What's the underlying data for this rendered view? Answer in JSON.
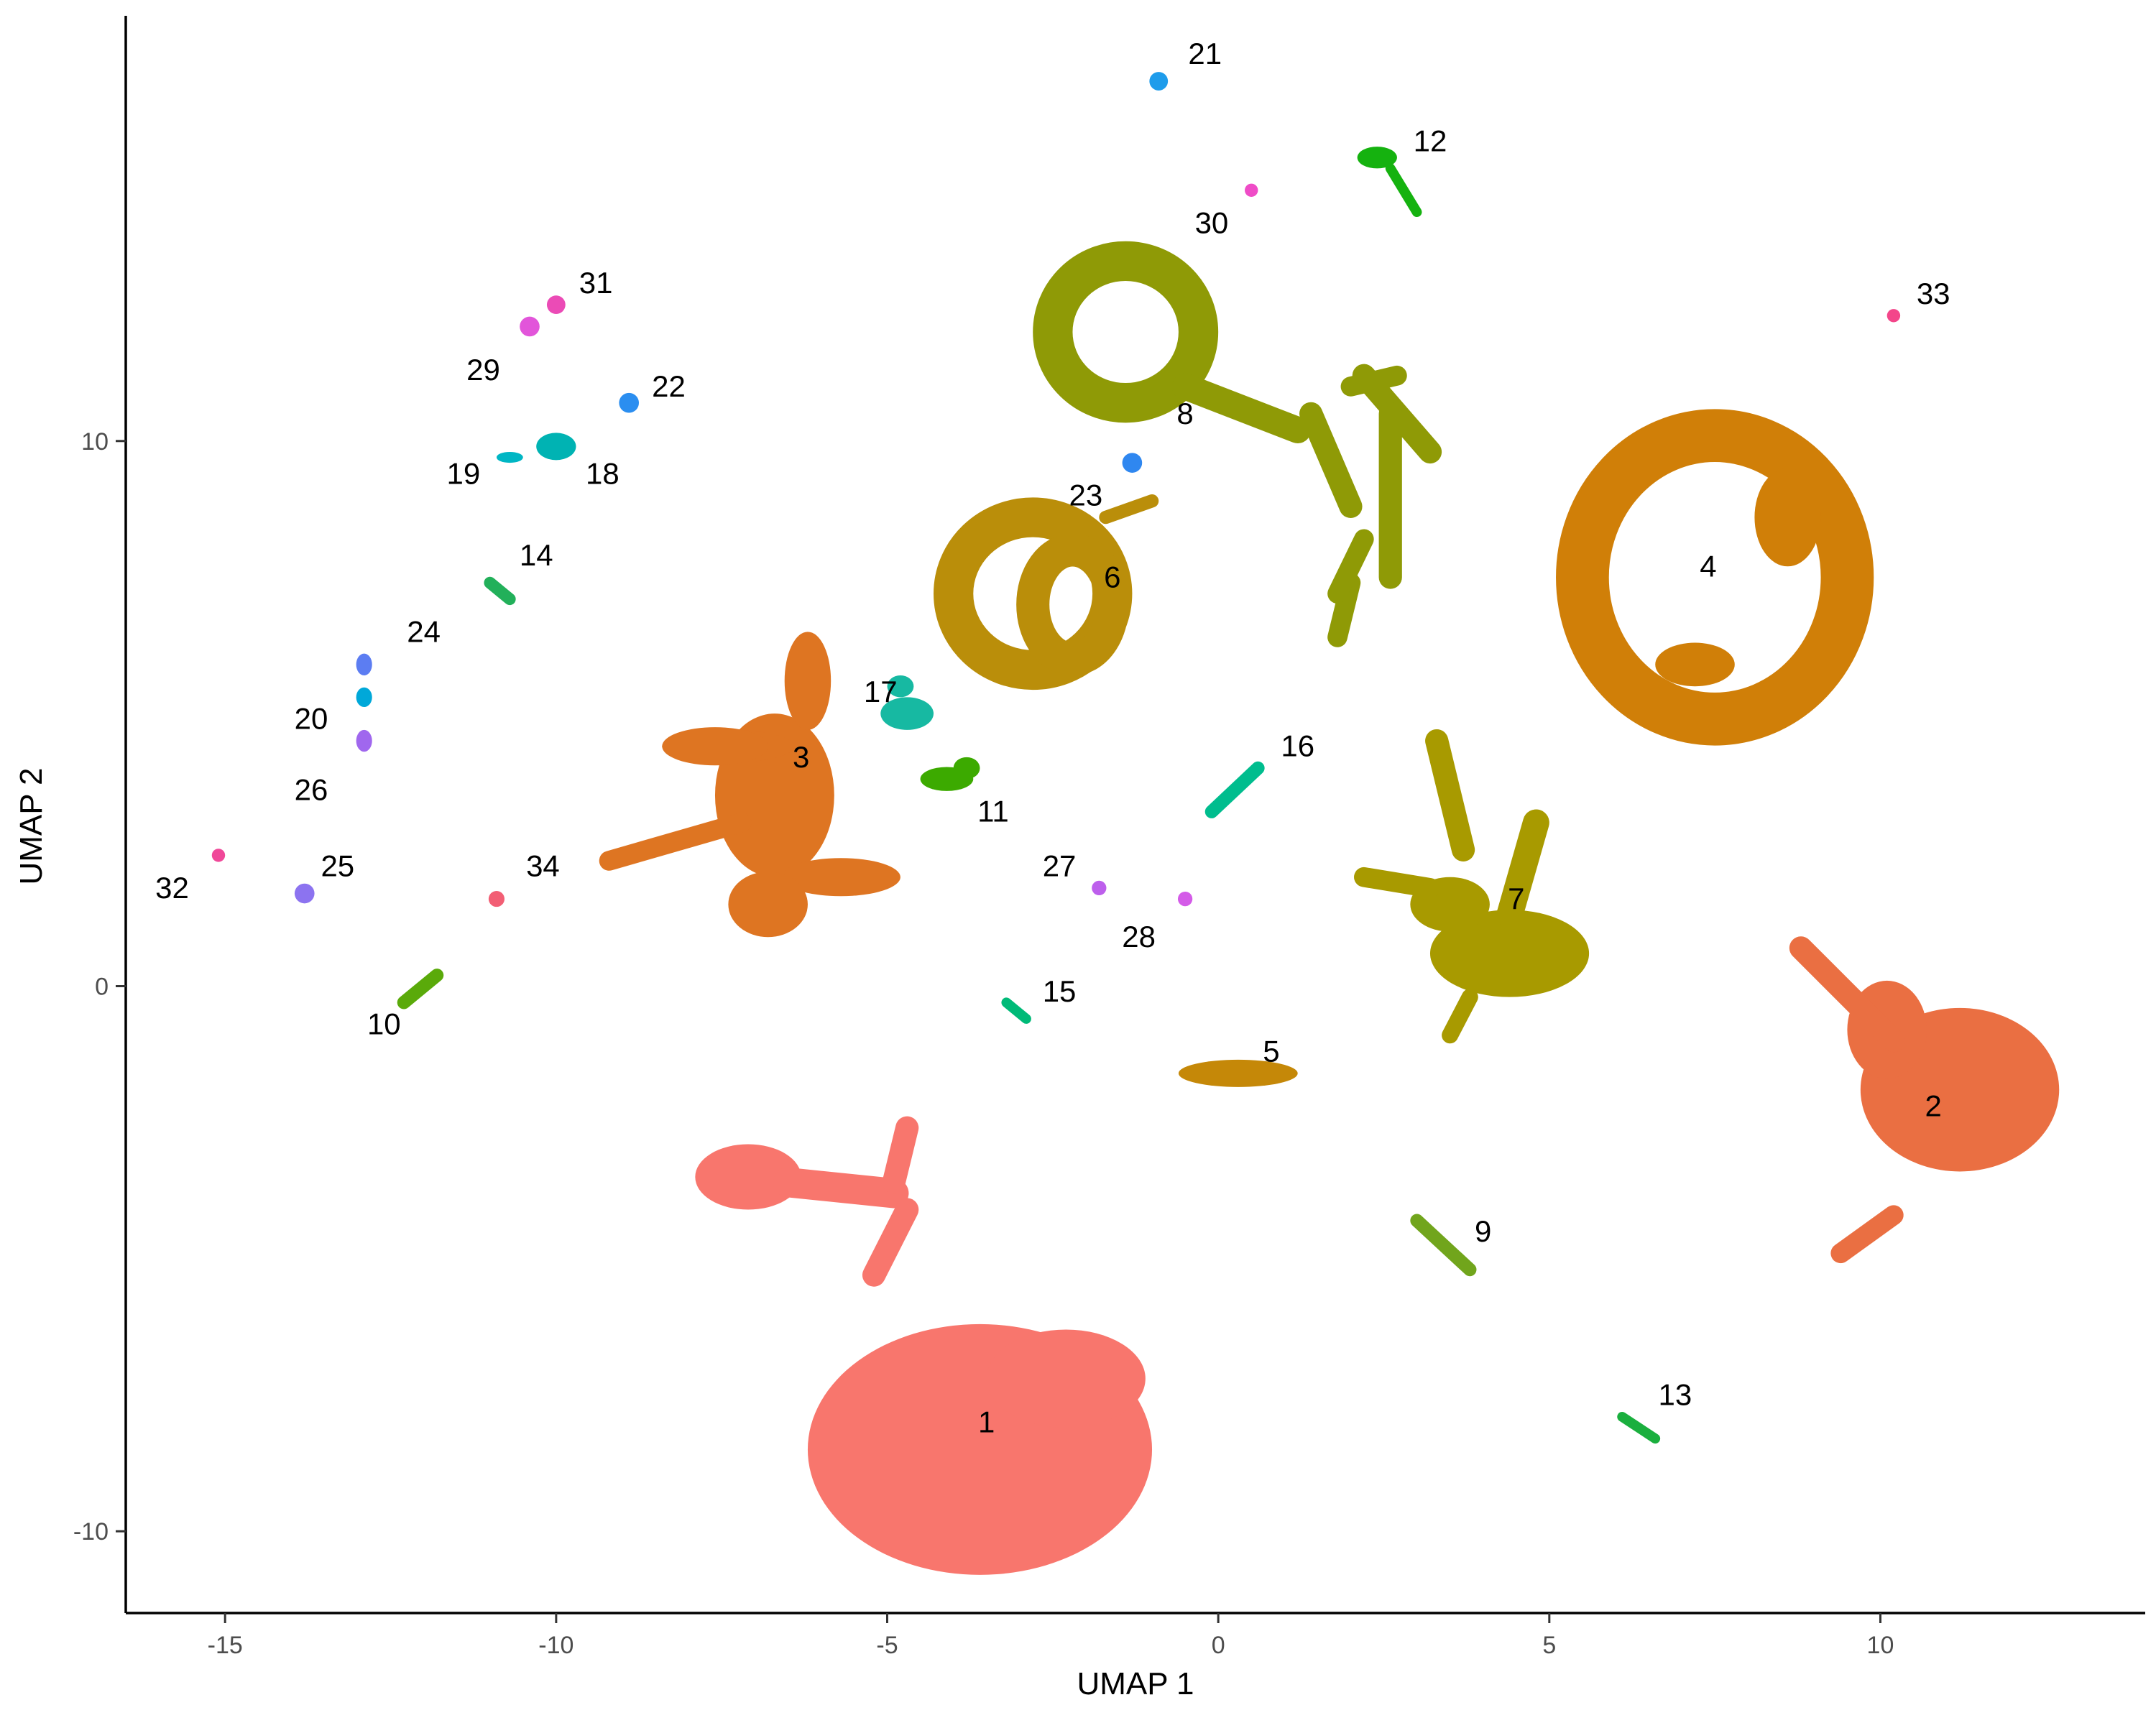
{
  "chart_data": {
    "type": "scatter",
    "title": "",
    "xlabel": "UMAP 1",
    "ylabel": "UMAP 2",
    "xlim": [
      -16.5,
      14
    ],
    "ylim": [
      -11.5,
      17.8
    ],
    "xticks": [
      -15,
      -10,
      -5,
      0,
      5,
      10
    ],
    "xtick_labels": [
      "-15",
      "-10",
      "-5",
      "0",
      "5",
      "10"
    ],
    "yticks": [
      -10,
      0,
      10
    ],
    "ytick_labels": [
      "-10",
      "0",
      "10"
    ],
    "grid": false,
    "legend": "none",
    "clusters": [
      {
        "id": "1",
        "color": "#F8766D",
        "center": [
          -3.6,
          -8.5
        ],
        "label_pos": [
          -3.5,
          -8.0
        ]
      },
      {
        "id": "2",
        "color": "#EA6F42",
        "center": [
          11.2,
          -2.0
        ],
        "label_pos": [
          10.8,
          -2.2
        ]
      },
      {
        "id": "3",
        "color": "#DE7522",
        "center": [
          -6.5,
          3.8
        ],
        "label_pos": [
          -6.3,
          4.2
        ]
      },
      {
        "id": "4",
        "color": "#D07F08",
        "center": [
          7.5,
          7.5
        ],
        "label_pos": [
          7.4,
          7.7
        ]
      },
      {
        "id": "5",
        "color": "#C58808",
        "center": [
          0.3,
          -1.6
        ],
        "label_pos": [
          0.8,
          -1.2
        ]
      },
      {
        "id": "6",
        "color": "#BA8E0A",
        "center": [
          -2.6,
          7.2
        ],
        "label_pos": [
          -1.6,
          7.5
        ]
      },
      {
        "id": "7",
        "color": "#A89A00",
        "center": [
          4.3,
          1.5
        ],
        "label_pos": [
          4.5,
          1.6
        ]
      },
      {
        "id": "8",
        "color": "#8F9A06",
        "center": [
          1.8,
          10.6
        ],
        "label_pos": [
          -0.5,
          10.5
        ]
      },
      {
        "id": "9",
        "color": "#71A51C",
        "center": [
          3.4,
          -4.6
        ],
        "label_pos": [
          4.0,
          -4.5
        ]
      },
      {
        "id": "10",
        "color": "#5AAA0A",
        "center": [
          -12.0,
          -0.1
        ],
        "label_pos": [
          -12.6,
          -0.7
        ]
      },
      {
        "id": "11",
        "color": "#3CAA00",
        "center": [
          -4.1,
          3.8
        ],
        "label_pos": [
          -3.4,
          3.2
        ]
      },
      {
        "id": "12",
        "color": "#15B20F",
        "center": [
          2.6,
          15.0
        ],
        "label_pos": [
          3.2,
          15.5
        ]
      },
      {
        "id": "13",
        "color": "#1AAF3E",
        "center": [
          6.4,
          -8.2
        ],
        "label_pos": [
          6.9,
          -7.5
        ]
      },
      {
        "id": "14",
        "color": "#22B05A",
        "center": [
          -10.9,
          7.4
        ],
        "label_pos": [
          -10.3,
          7.9
        ]
      },
      {
        "id": "15",
        "color": "#00BA78",
        "center": [
          -3.1,
          -0.5
        ],
        "label_pos": [
          -2.4,
          -0.1
        ]
      },
      {
        "id": "16",
        "color": "#00BD8E",
        "center": [
          0.3,
          3.7
        ],
        "label_pos": [
          1.2,
          4.4
        ]
      },
      {
        "id": "17",
        "color": "#17B9A2",
        "center": [
          -4.7,
          5.1
        ],
        "label_pos": [
          -5.1,
          5.4
        ]
      },
      {
        "id": "18",
        "color": "#00B3B3",
        "center": [
          -10.0,
          9.9
        ],
        "label_pos": [
          -9.3,
          9.4
        ]
      },
      {
        "id": "19",
        "color": "#00B6C4",
        "center": [
          -10.7,
          9.8
        ],
        "label_pos": [
          -11.4,
          9.4
        ]
      },
      {
        "id": "20",
        "color": "#00A8D9",
        "center": [
          -12.9,
          5.2
        ],
        "label_pos": [
          -13.7,
          4.9
        ]
      },
      {
        "id": "21",
        "color": "#1E9CEB",
        "center": [
          -0.9,
          16.7
        ],
        "label_pos": [
          -0.2,
          17.1
        ]
      },
      {
        "id": "22",
        "color": "#2B8EF0",
        "center": [
          -8.9,
          10.7
        ],
        "label_pos": [
          -8.3,
          11.0
        ]
      },
      {
        "id": "23",
        "color": "#2F87F0",
        "center": [
          -1.3,
          9.6
        ],
        "label_pos": [
          -2.0,
          9.0
        ]
      },
      {
        "id": "24",
        "color": "#5C7DF2",
        "center": [
          -12.9,
          5.9
        ],
        "label_pos": [
          -12.0,
          6.5
        ]
      },
      {
        "id": "25",
        "color": "#8C73F0",
        "center": [
          -13.8,
          1.7
        ],
        "label_pos": [
          -13.3,
          2.2
        ]
      },
      {
        "id": "26",
        "color": "#A067EE",
        "center": [
          -12.9,
          4.4
        ],
        "label_pos": [
          -13.7,
          3.6
        ]
      },
      {
        "id": "27",
        "color": "#BD5FEC",
        "center": [
          -1.8,
          1.8
        ],
        "label_pos": [
          -2.4,
          2.2
        ]
      },
      {
        "id": "28",
        "color": "#D45BE8",
        "center": [
          -0.5,
          1.6
        ],
        "label_pos": [
          -1.2,
          0.9
        ]
      },
      {
        "id": "29",
        "color": "#E255DA",
        "center": [
          -10.4,
          12.1
        ],
        "label_pos": [
          -11.1,
          11.3
        ]
      },
      {
        "id": "30",
        "color": "#EF4CC7",
        "center": [
          0.5,
          14.6
        ],
        "label_pos": [
          -0.1,
          14.0
        ]
      },
      {
        "id": "31",
        "color": "#EB4BB6",
        "center": [
          -10.0,
          12.5
        ],
        "label_pos": [
          -9.4,
          12.9
        ]
      },
      {
        "id": "32",
        "color": "#F04899",
        "center": [
          -15.1,
          2.4
        ],
        "label_pos": [
          -15.8,
          1.8
        ]
      },
      {
        "id": "33",
        "color": "#F3468A",
        "center": [
          10.2,
          12.3
        ],
        "label_pos": [
          10.8,
          12.7
        ]
      },
      {
        "id": "34",
        "color": "#F25E74",
        "center": [
          -10.9,
          1.6
        ],
        "label_pos": [
          -10.2,
          2.2
        ]
      }
    ]
  }
}
